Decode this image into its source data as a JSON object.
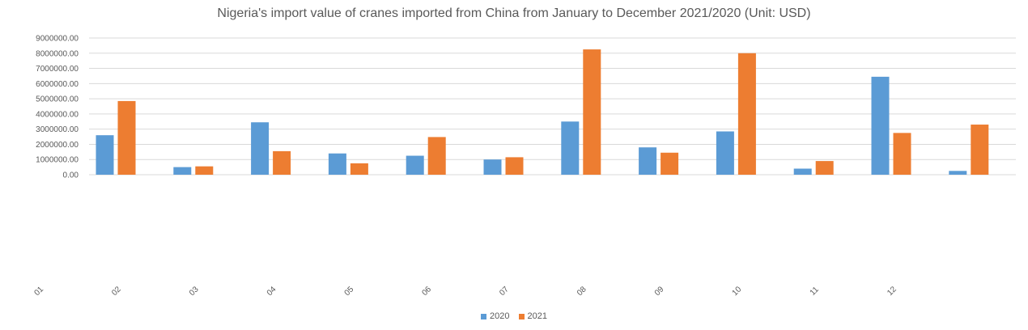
{
  "chart_data": {
    "type": "bar",
    "title": "Nigeria's import value of cranes imported from China from January to December 2021/2020 (Unit: USD)",
    "categories": [
      "01",
      "02",
      "03",
      "04",
      "05",
      "06",
      "07",
      "08",
      "09",
      "10",
      "11",
      "12"
    ],
    "y_tick_labels": [
      "0.00",
      "1000000.00",
      "2000000.00",
      "3000000.00",
      "4000000.00",
      "5000000.00",
      "6000000.00",
      "7000000.00",
      "8000000.00",
      "9000000.00"
    ],
    "ylim": [
      0,
      9000000
    ],
    "grid": true,
    "legend_position": "bottom",
    "series": [
      {
        "name": "2020",
        "color": "#5B9BD5",
        "values": [
          2600000,
          500000,
          3450000,
          1400000,
          1250000,
          1000000,
          3500000,
          1800000,
          2850000,
          400000,
          6450000,
          250000
        ]
      },
      {
        "name": "2021",
        "color": "#ED7D31",
        "values": [
          4850000,
          550000,
          1550000,
          750000,
          2480000,
          1150000,
          8250000,
          1450000,
          8000000,
          900000,
          2750000,
          3300000
        ]
      }
    ]
  }
}
